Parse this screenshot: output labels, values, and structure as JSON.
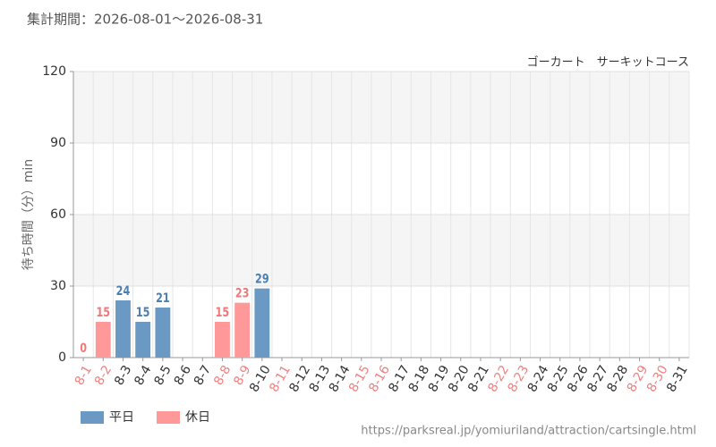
{
  "chart_data": {
    "type": "bar",
    "title": "集計期間：2026-08-01～2026-08-31",
    "subtitle": "ゴーカート　サーキットコース",
    "y_label": "待ち時間（分）min",
    "source": "https://parksreal.jp/yomiuriland/attraction/cartsingle.html",
    "categories": [
      "8-1",
      "8-2",
      "8-3",
      "8-4",
      "8-5",
      "8-6",
      "8-7",
      "8-8",
      "8-9",
      "8-10",
      "8-11",
      "8-12",
      "8-13",
      "8-14",
      "8-15",
      "8-16",
      "8-17",
      "8-18",
      "8-19",
      "8-20",
      "8-21",
      "8-22",
      "8-23",
      "8-24",
      "8-25",
      "8-26",
      "8-27",
      "8-28",
      "8-29",
      "8-30",
      "8-31"
    ],
    "category_colors": [
      "#f08080",
      "#f08080",
      "#333333",
      "#333333",
      "#333333",
      "#333333",
      "#333333",
      "#f08080",
      "#f08080",
      "#333333",
      "#f08080",
      "#333333",
      "#333333",
      "#333333",
      "#f08080",
      "#f08080",
      "#333333",
      "#333333",
      "#333333",
      "#333333",
      "#333333",
      "#f08080",
      "#f08080",
      "#333333",
      "#333333",
      "#333333",
      "#333333",
      "#333333",
      "#f08080",
      "#f08080",
      "#333333"
    ],
    "series": [
      {
        "name": "平日",
        "color": "#6a9ac4",
        "label_color": "#4a7fb0",
        "values": [
          null,
          null,
          24,
          15,
          21,
          null,
          null,
          null,
          null,
          29,
          null,
          null,
          null,
          null,
          null,
          null,
          null,
          null,
          null,
          null,
          null,
          null,
          null,
          null,
          null,
          null,
          null,
          null,
          null,
          null,
          null
        ]
      },
      {
        "name": "休日",
        "color": "#ff9999",
        "label_color": "#f07878",
        "values": [
          0,
          15,
          null,
          null,
          null,
          null,
          null,
          15,
          23,
          null,
          null,
          null,
          null,
          null,
          null,
          null,
          null,
          null,
          null,
          null,
          null,
          null,
          null,
          null,
          null,
          null,
          null,
          null,
          null,
          null,
          null
        ]
      }
    ],
    "ylim": [
      0,
      120
    ],
    "yticks": [
      0,
      30,
      60,
      90,
      120
    ],
    "grid": true
  }
}
